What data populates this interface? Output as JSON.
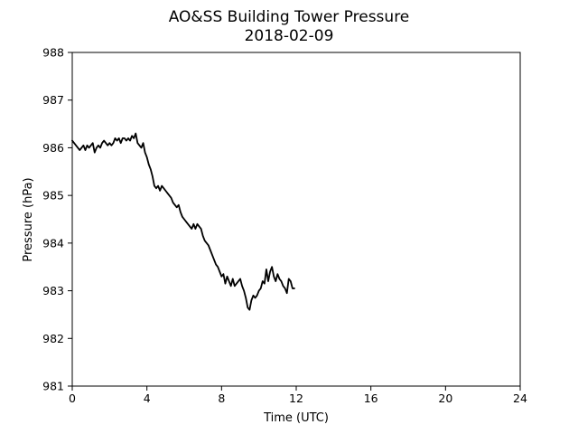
{
  "chart_data": {
    "type": "line",
    "title": "AO&SS Building Tower Pressure",
    "subtitle": "2018-02-09",
    "xlabel": "Time (UTC)",
    "ylabel": "Pressure (hPa)",
    "xlim": [
      0,
      24
    ],
    "ylim": [
      981,
      988
    ],
    "xticks": [
      0,
      4,
      8,
      12,
      16,
      20,
      24
    ],
    "yticks": [
      981,
      982,
      983,
      984,
      985,
      986,
      987,
      988
    ],
    "grid": false,
    "legend": "none",
    "series": [
      {
        "color": "#000000",
        "x": [
          0.0,
          0.1,
          0.2,
          0.3,
          0.4,
          0.5,
          0.6,
          0.7,
          0.8,
          0.9,
          1.0,
          1.1,
          1.2,
          1.3,
          1.4,
          1.5,
          1.6,
          1.7,
          1.8,
          1.9,
          2.0,
          2.1,
          2.2,
          2.3,
          2.4,
          2.5,
          2.6,
          2.7,
          2.8,
          2.9,
          3.0,
          3.1,
          3.2,
          3.3,
          3.4,
          3.5,
          3.6,
          3.7,
          3.8,
          3.9,
          4.0,
          4.1,
          4.2,
          4.3,
          4.4,
          4.5,
          4.6,
          4.7,
          4.8,
          4.9,
          5.0,
          5.1,
          5.2,
          5.3,
          5.4,
          5.5,
          5.6,
          5.7,
          5.8,
          5.9,
          6.0,
          6.1,
          6.2,
          6.3,
          6.4,
          6.5,
          6.6,
          6.7,
          6.8,
          6.9,
          7.0,
          7.1,
          7.2,
          7.3,
          7.4,
          7.5,
          7.6,
          7.7,
          7.8,
          7.9,
          8.0,
          8.1,
          8.2,
          8.3,
          8.4,
          8.5,
          8.6,
          8.7,
          8.8,
          8.9,
          9.0,
          9.1,
          9.2,
          9.3,
          9.4,
          9.5,
          9.6,
          9.7,
          9.8,
          9.9,
          10.0,
          10.1,
          10.2,
          10.3,
          10.4,
          10.5,
          10.6,
          10.7,
          10.8,
          10.9,
          11.0,
          11.1,
          11.2,
          11.3,
          11.4,
          11.5,
          11.6,
          11.7,
          11.8,
          11.9
        ],
        "values": [
          986.15,
          986.1,
          986.05,
          986.0,
          985.95,
          986.0,
          986.05,
          985.95,
          986.05,
          986.0,
          986.05,
          986.1,
          985.9,
          986.0,
          986.05,
          986.0,
          986.1,
          986.15,
          986.1,
          986.05,
          986.1,
          986.05,
          986.1,
          986.2,
          986.15,
          986.2,
          986.1,
          986.2,
          986.2,
          986.15,
          986.2,
          986.15,
          986.25,
          986.2,
          986.3,
          986.1,
          986.05,
          986.0,
          986.1,
          985.9,
          985.8,
          985.65,
          985.55,
          985.4,
          985.2,
          985.15,
          985.2,
          985.1,
          985.2,
          985.15,
          985.1,
          985.05,
          985.0,
          984.95,
          984.85,
          984.8,
          984.75,
          984.8,
          984.65,
          984.55,
          984.5,
          984.45,
          984.4,
          984.35,
          984.3,
          984.4,
          984.3,
          984.4,
          984.35,
          984.3,
          984.15,
          984.05,
          984.0,
          983.95,
          983.85,
          983.75,
          983.65,
          983.55,
          983.5,
          983.4,
          983.3,
          983.35,
          983.15,
          983.3,
          983.2,
          983.1,
          983.25,
          983.1,
          983.15,
          983.2,
          983.25,
          983.1,
          983.0,
          982.85,
          982.65,
          982.6,
          982.8,
          982.9,
          982.85,
          982.9,
          983.0,
          983.05,
          983.2,
          983.15,
          983.45,
          983.2,
          983.4,
          983.5,
          983.3,
          983.2,
          983.35,
          983.25,
          983.2,
          983.1,
          983.05,
          982.95,
          983.25,
          983.2,
          983.05,
          983.05
        ]
      }
    ]
  }
}
